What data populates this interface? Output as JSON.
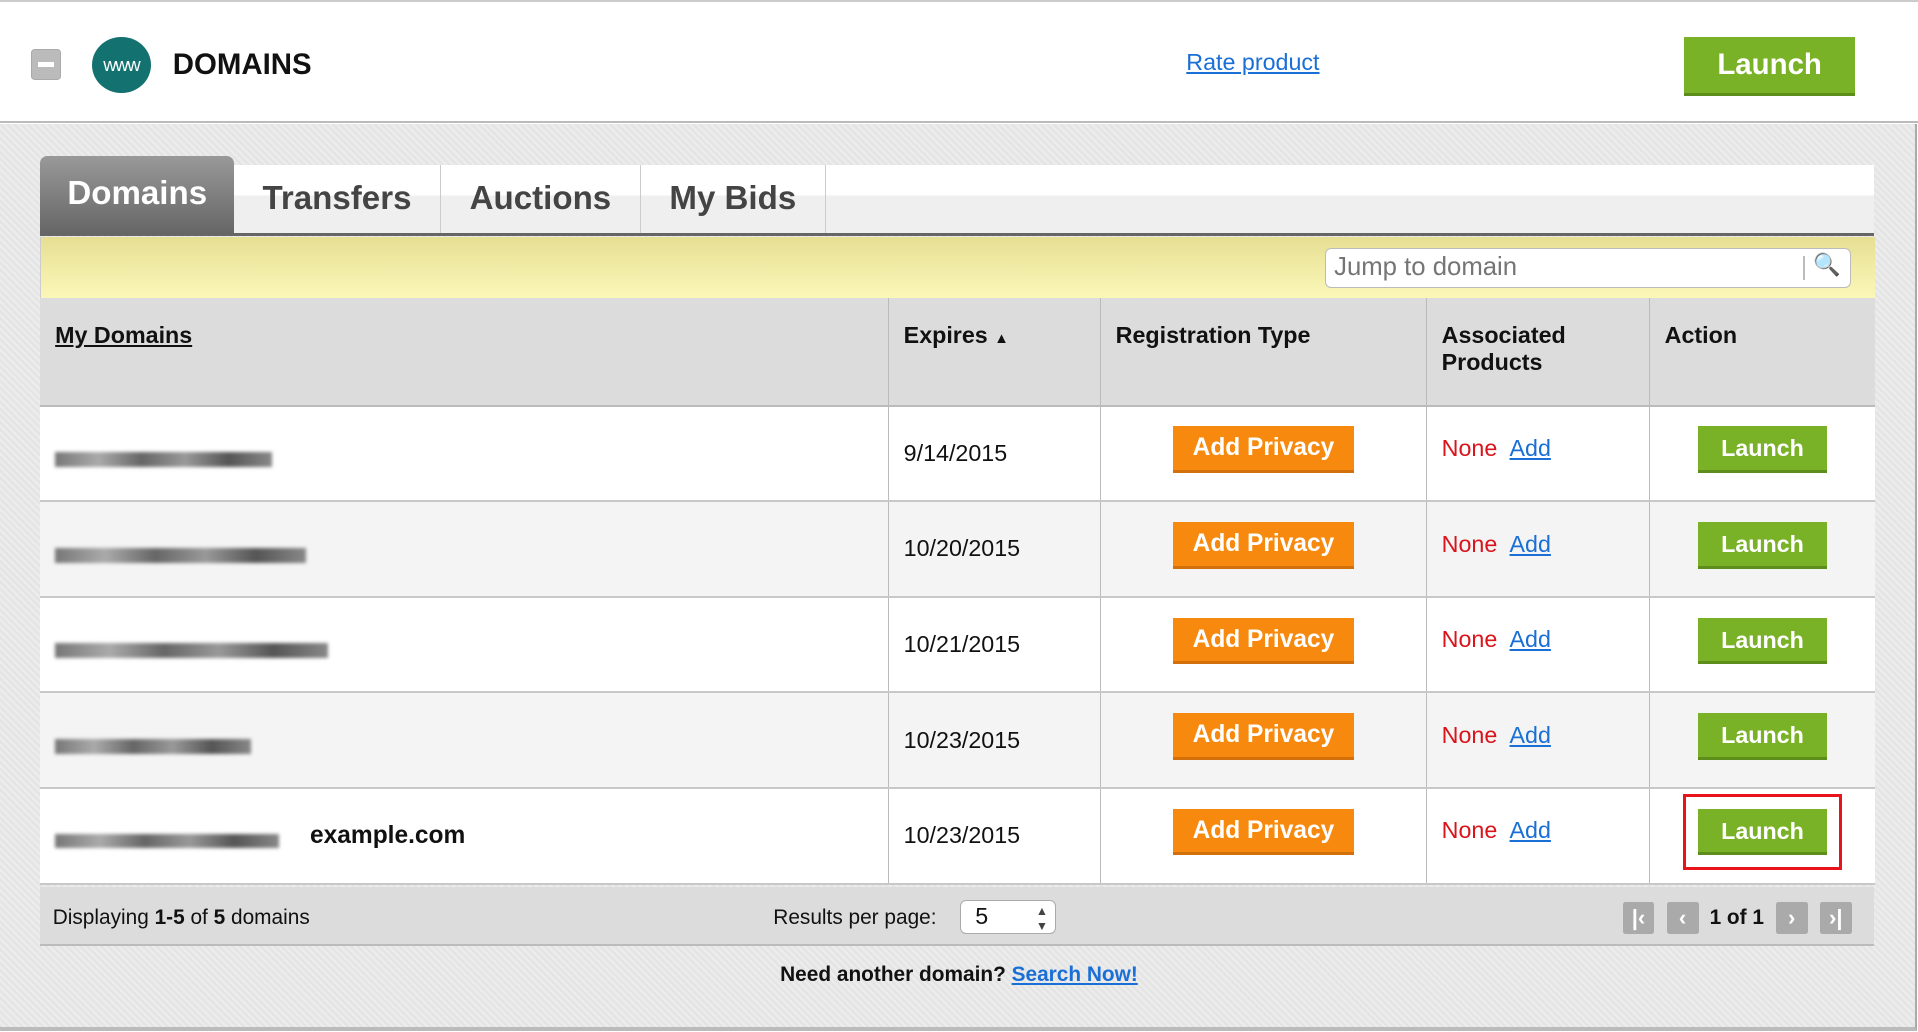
{
  "header": {
    "title": "DOMAINS",
    "logo_text": "www",
    "rate_link": "Rate product",
    "launch_label": "Launch",
    "collapse_icon": "minus-icon"
  },
  "tabs": [
    {
      "label": "Domains",
      "active": true
    },
    {
      "label": "Transfers"
    },
    {
      "label": "Auctions"
    },
    {
      "label": "My Bids"
    }
  ],
  "search": {
    "placeholder": "Jump to domain",
    "icon": "search-icon"
  },
  "table": {
    "columns": [
      "My Domains",
      "Expires",
      "Registration Type",
      "Associated Products",
      "Action"
    ],
    "sort_indicator": "▲",
    "rows": [
      {
        "domain_extra": "",
        "expires": "9/14/2015",
        "reg_button": "Add Privacy",
        "products": "None",
        "add_link": "Add",
        "action": "Launch"
      },
      {
        "domain_extra": "",
        "expires": "10/20/2015",
        "reg_button": "Add Privacy",
        "products": "None",
        "add_link": "Add",
        "action": "Launch"
      },
      {
        "domain_extra": "",
        "expires": "10/21/2015",
        "reg_button": "Add Privacy",
        "products": "None",
        "add_link": "Add",
        "action": "Launch"
      },
      {
        "domain_extra": "",
        "expires": "10/23/2015",
        "reg_button": "Add Privacy",
        "products": "None",
        "add_link": "Add",
        "action": "Launch"
      },
      {
        "domain_extra": "example.com",
        "expires": "10/23/2015",
        "reg_button": "Add Privacy",
        "products": "None",
        "add_link": "Add",
        "action": "Launch",
        "highlighted": true
      }
    ]
  },
  "footer": {
    "display_prefix": "Displaying ",
    "display_range": "1-5",
    "display_of": " of ",
    "display_total": "5",
    "display_suffix": " domains",
    "rpp_label": "Results per page:",
    "rpp_value": "5",
    "page_text": "1 of 1"
  },
  "bottom": {
    "question": "Need another domain? ",
    "link": "Search Now!"
  },
  "colors": {
    "launch_green": "#7ab227",
    "privacy_orange": "#f7890f",
    "link_blue": "#1a6fd6",
    "none_red": "#d9141b",
    "highlight_red": "#e8141b"
  }
}
